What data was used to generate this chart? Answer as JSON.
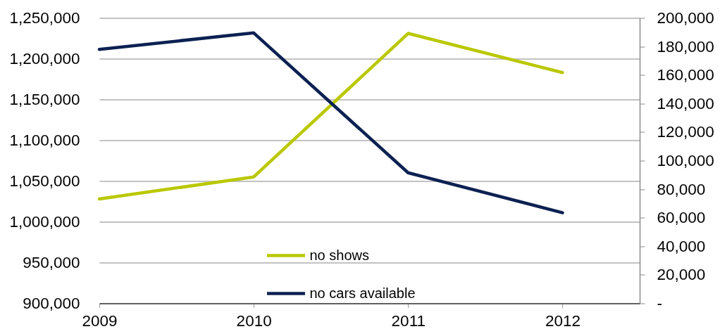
{
  "chart_data": {
    "type": "line",
    "x": [
      2009,
      2010,
      2011,
      2012
    ],
    "xlim": [
      2009,
      2012.5
    ],
    "xticks": [
      2009,
      2010,
      2011,
      2012
    ],
    "ylim": [
      900000,
      1250000
    ],
    "yticks": [
      {
        "value": 900000,
        "label": "900,000"
      },
      {
        "value": 950000,
        "label": "950,000"
      },
      {
        "value": 1000000,
        "label": "1,000,000"
      },
      {
        "value": 1050000,
        "label": "1,050,000"
      },
      {
        "value": 1100000,
        "label": "1,100,000"
      },
      {
        "value": 1150000,
        "label": "1,150,000"
      },
      {
        "value": 1200000,
        "label": "1,200,000"
      },
      {
        "value": 1250000,
        "label": "1,250,000"
      }
    ],
    "y2lim": [
      0,
      200000
    ],
    "y2ticks": [
      {
        "value": 0,
        "label": "-"
      },
      {
        "value": 20000,
        "label": "20,000"
      },
      {
        "value": 40000,
        "label": "40,000"
      },
      {
        "value": 60000,
        "label": "60,000"
      },
      {
        "value": 80000,
        "label": "80,000"
      },
      {
        "value": 100000,
        "label": "100,000"
      },
      {
        "value": 120000,
        "label": "120,000"
      },
      {
        "value": 140000,
        "label": "140,000"
      },
      {
        "value": 160000,
        "label": "160,000"
      },
      {
        "value": 180000,
        "label": "180,000"
      },
      {
        "value": 200000,
        "label": "200,000"
      }
    ],
    "series": [
      {
        "name": "no shows",
        "color": "#b9c800",
        "values": [
          1028000,
          1055000,
          1231000,
          1183000
        ]
      },
      {
        "name": "no cars available",
        "color": "#0c2152",
        "axis": "y2",
        "values": [
          178000,
          189500,
          91500,
          63500
        ]
      }
    ],
    "grid": "y",
    "legend": "bottom",
    "line_style": "solid"
  }
}
